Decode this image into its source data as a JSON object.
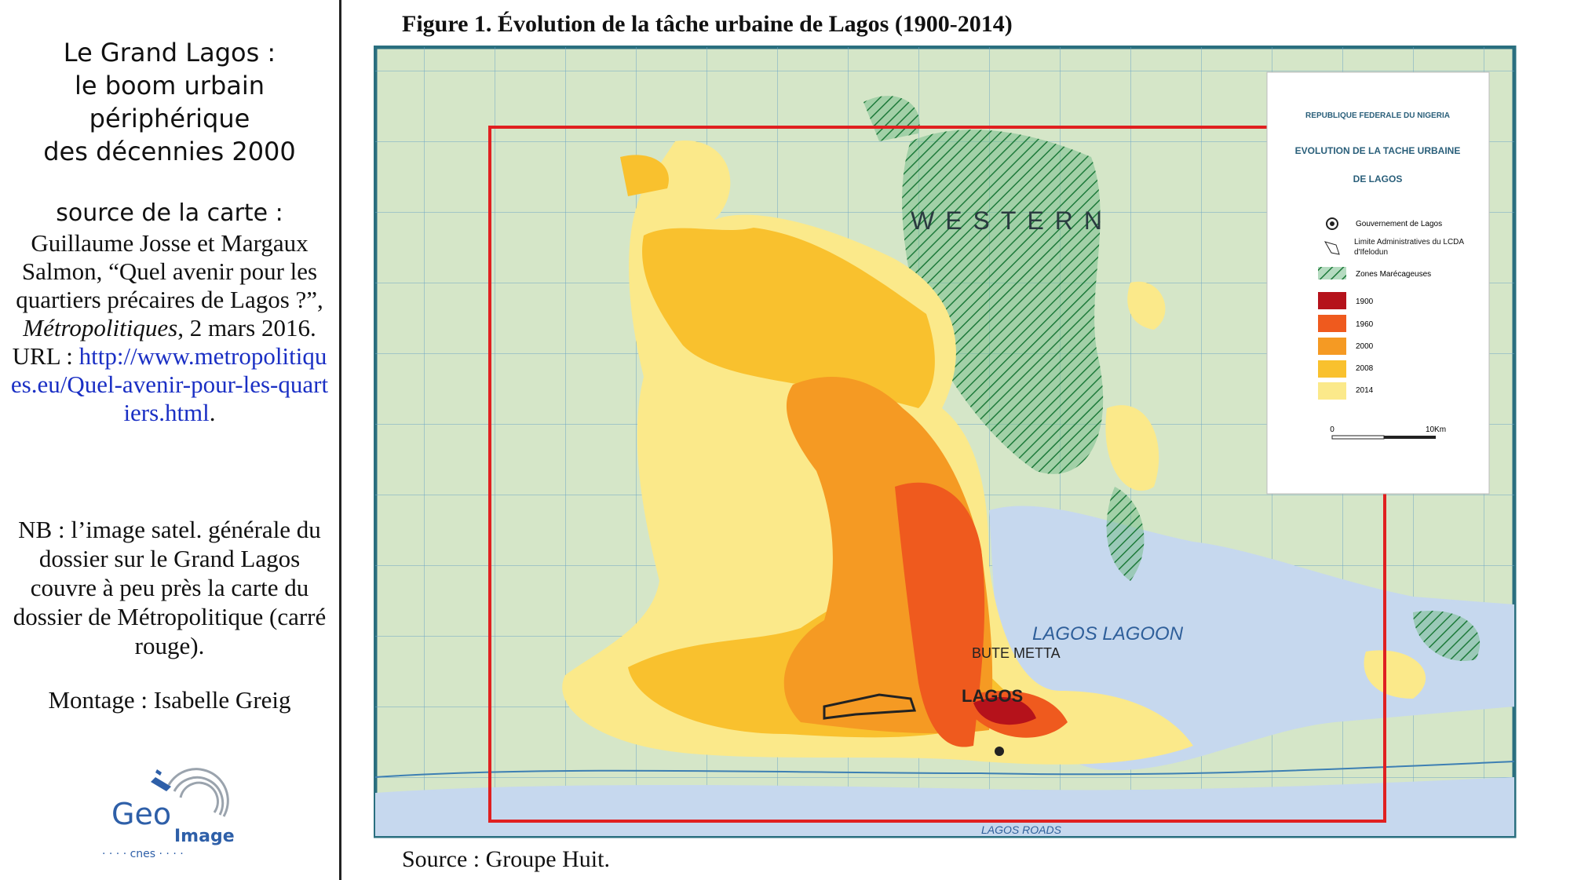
{
  "left_panel": {
    "title_lines": [
      "Le Grand Lagos :",
      "le boom urbain",
      "périphérique",
      "des décennies 2000"
    ],
    "source_label": "source de la carte :",
    "citation_1": "Guillaume Josse et Margaux Salmon, “Quel avenir pour les quartiers précaires de Lagos ?”, ",
    "citation_journal": "Métropolitiques",
    "citation_2": ", 2 mars 2016. URL : ",
    "url": "http://www.metropolitiques.eu/Quel-avenir-pour-les-quartiers.html",
    "citation_end": ".",
    "nb": "NB : l’image satel. générale du dossier sur le Grand Lagos couvre à peu près la carte du dossier de Métropolitique (carré rouge).",
    "montage": "Montage : Isabelle Greig",
    "logo": {
      "geo": "Geo",
      "image": "Image",
      "cnes": "· · · · cnes · · · ·"
    }
  },
  "figure": {
    "title": "Figure 1. Évolution de la tâche urbaine de Lagos (1900-2014)",
    "source": "Source : Groupe Huit.",
    "map_labels": {
      "western": "WESTERN",
      "lagoon": "LAGOS LAGOON",
      "lagos": "LAGOS",
      "bute_metta": "BUTE METTA",
      "roads": "LAGOS ROADS"
    },
    "legend": {
      "header": "REPUBLIQUE FEDERALE DU NIGERIA",
      "title_1": "EVOLUTION DE LA TACHE URBAINE",
      "title_2": "DE LAGOS",
      "items": [
        "Gouvernement de Lagos",
        "Limite Administratives du LCDA d'Ifelodun",
        "Zones Marécageuses",
        "1900",
        "1960",
        "2000",
        "2008",
        "2014"
      ],
      "scale_start": "0",
      "scale_end": "10Km"
    }
  }
}
